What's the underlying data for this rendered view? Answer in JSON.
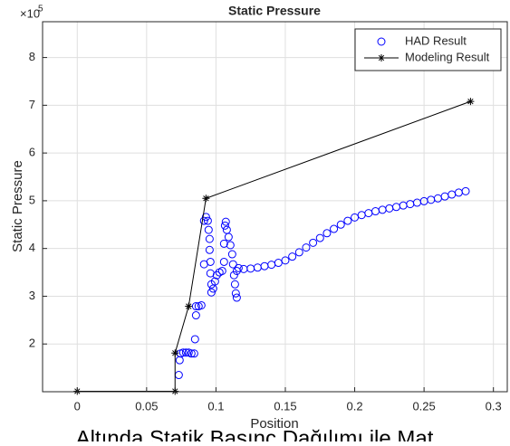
{
  "chart_data": {
    "type": "scatter",
    "title": "Static Pressure",
    "xlabel": "Position",
    "ylabel": "Static Pressure",
    "y_exponent_base": "×10",
    "y_exponent": "5",
    "caption": "Altında Statik Basınç Dağılımı ile Mat",
    "xlim": [
      -0.025,
      0.31
    ],
    "ylim": [
      100000,
      875000
    ],
    "xticks": [
      0,
      0.05,
      0.1,
      0.15,
      0.2,
      0.25,
      0.3
    ],
    "yticks": [
      {
        "value": 200000,
        "label": "2"
      },
      {
        "value": 300000,
        "label": "3"
      },
      {
        "value": 400000,
        "label": "4"
      },
      {
        "value": 500000,
        "label": "5"
      },
      {
        "value": 600000,
        "label": "6"
      },
      {
        "value": 700000,
        "label": "7"
      },
      {
        "value": 800000,
        "label": "8"
      }
    ],
    "grid": true,
    "legend": "northeast",
    "series": [
      {
        "name": "HAD Result",
        "color": "#0000ff",
        "marker": "o",
        "line": false,
        "x": [
          0.0732,
          0.0738,
          0.0745,
          0.0764,
          0.0784,
          0.0803,
          0.0823,
          0.0843,
          0.0849,
          0.0856,
          0.0856,
          0.0875,
          0.0895,
          0.0914,
          0.0914,
          0.0928,
          0.0941,
          0.0947,
          0.0954,
          0.0954,
          0.096,
          0.096,
          0.0967,
          0.0967,
          0.098,
          0.0993,
          0.1006,
          0.1025,
          0.1045,
          0.1058,
          0.1058,
          0.1065,
          0.1071,
          0.1078,
          0.1091,
          0.1104,
          0.1117,
          0.1123,
          0.113,
          0.1137,
          0.1143,
          0.115,
          0.115,
          0.1163,
          0.12,
          0.125,
          0.13,
          0.135,
          0.14,
          0.145,
          0.15,
          0.155,
          0.16,
          0.165,
          0.17,
          0.175,
          0.18,
          0.185,
          0.19,
          0.195,
          0.2,
          0.205,
          0.21,
          0.215,
          0.22,
          0.225,
          0.23,
          0.235,
          0.24,
          0.245,
          0.25,
          0.255,
          0.26,
          0.265,
          0.27,
          0.275,
          0.28
        ],
        "values": [
          135000,
          166000,
          180000,
          182000,
          182000,
          182000,
          180000,
          180000,
          210000,
          260000,
          279000,
          279000,
          281000,
          367000,
          458000,
          466000,
          458000,
          439000,
          420000,
          397000,
          372000,
          348000,
          325000,
          308000,
          316000,
          331000,
          344000,
          350000,
          353000,
          372000,
          410000,
          448000,
          456000,
          439000,
          424000,
          407000,
          388000,
          367000,
          344000,
          325000,
          306000,
          297000,
          353000,
          359000,
          357000,
          358000,
          360000,
          363000,
          366000,
          370000,
          375000,
          383000,
          392000,
          402000,
          412000,
          422000,
          432000,
          441000,
          450000,
          458000,
          465000,
          470000,
          474000,
          478000,
          481000,
          484000,
          487000,
          490000,
          493000,
          496000,
          499000,
          502000,
          505000,
          509000,
          513000,
          517000,
          520000
        ]
      },
      {
        "name": "Modeling Result",
        "color": "#000000",
        "marker": "*",
        "line": true,
        "x": [
          0,
          0.0705,
          0.0705,
          0.0803,
          0.0928,
          0.2835
        ],
        "values": [
          101000,
          101000,
          181000,
          279000,
          505000,
          708000
        ]
      }
    ]
  }
}
